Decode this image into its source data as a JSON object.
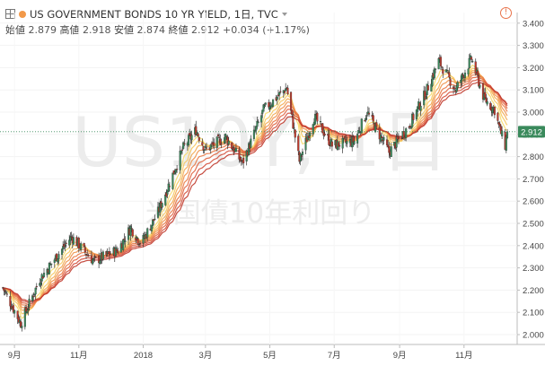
{
  "header": {
    "title": "US GOVERNMENT BONDS 10 YR YIELD, 1日, TVC",
    "open_label": "始値",
    "open_value": "2.879",
    "high_label": "高値",
    "high_value": "2.918",
    "low_label": "安値",
    "low_value": "2.874",
    "close_label": "終値",
    "close_value": "2.912",
    "change": "+0.034 (+1.17%)",
    "alert_icon_text": "!"
  },
  "watermark": {
    "symbol": "US10Y, 1日",
    "description": "米国債10年利回り"
  },
  "colors": {
    "up": "#3a8a5c",
    "down": "#c0392b",
    "ribbon_fast": "#f5d76e",
    "ribbon_slow": "#c0392b",
    "price_badge": "#3a8a5c"
  },
  "icons": {
    "expand": "expand-icon",
    "symbol_dot": "symbol-dot-icon",
    "dropdown": "chevron-down-icon",
    "alert": "alert-icon"
  },
  "chart_data": {
    "type": "candlestick",
    "title": "US GOVERNMENT BONDS 10 YR YIELD, 1日, TVC",
    "x_tick_labels": [
      "9月",
      "11月",
      "2018",
      "3月",
      "5月",
      "7月",
      "9月",
      "11月"
    ],
    "y_tick_labels": [
      "2.000",
      "2.100",
      "2.200",
      "2.300",
      "2.400",
      "2.500",
      "2.600",
      "2.700",
      "2.800",
      "2.900",
      "3.000",
      "3.100",
      "3.200",
      "3.300",
      "3.400"
    ],
    "ylim": [
      1.97,
      3.44
    ],
    "last_price_label": "2.912",
    "last_price": 2.912,
    "ribbon": "EMA ribbon (8 lines, yellow to red)",
    "key_points": [
      {
        "date": "2017-08-20",
        "close": 2.22
      },
      {
        "date": "2017-09-07",
        "close": 2.05
      },
      {
        "date": "2017-09-25",
        "close": 2.25
      },
      {
        "date": "2017-10-25",
        "close": 2.44
      },
      {
        "date": "2017-11-15",
        "close": 2.33
      },
      {
        "date": "2017-12-08",
        "close": 2.38
      },
      {
        "date": "2017-12-20",
        "close": 2.48
      },
      {
        "date": "2017-12-30",
        "close": 2.41
      },
      {
        "date": "2018-01-15",
        "close": 2.55
      },
      {
        "date": "2018-02-08",
        "close": 2.84
      },
      {
        "date": "2018-02-20",
        "close": 2.92
      },
      {
        "date": "2018-03-01",
        "close": 2.83
      },
      {
        "date": "2018-03-20",
        "close": 2.89
      },
      {
        "date": "2018-04-05",
        "close": 2.77
      },
      {
        "date": "2018-04-25",
        "close": 3.01
      },
      {
        "date": "2018-05-17",
        "close": 3.11
      },
      {
        "date": "2018-05-29",
        "close": 2.78
      },
      {
        "date": "2018-06-12",
        "close": 2.98
      },
      {
        "date": "2018-06-29",
        "close": 2.85
      },
      {
        "date": "2018-07-20",
        "close": 2.87
      },
      {
        "date": "2018-08-01",
        "close": 3.0
      },
      {
        "date": "2018-08-22",
        "close": 2.82
      },
      {
        "date": "2018-09-10",
        "close": 2.94
      },
      {
        "date": "2018-09-25",
        "close": 3.08
      },
      {
        "date": "2018-10-08",
        "close": 3.23
      },
      {
        "date": "2018-10-24",
        "close": 3.1
      },
      {
        "date": "2018-11-08",
        "close": 3.24
      },
      {
        "date": "2018-11-20",
        "close": 3.06
      },
      {
        "date": "2018-11-30",
        "close": 3.01
      },
      {
        "date": "2018-12-05",
        "close": 2.92
      },
      {
        "date": "2018-12-10",
        "close": 2.85
      },
      {
        "date": "2018-12-12",
        "close": 2.912
      }
    ]
  }
}
